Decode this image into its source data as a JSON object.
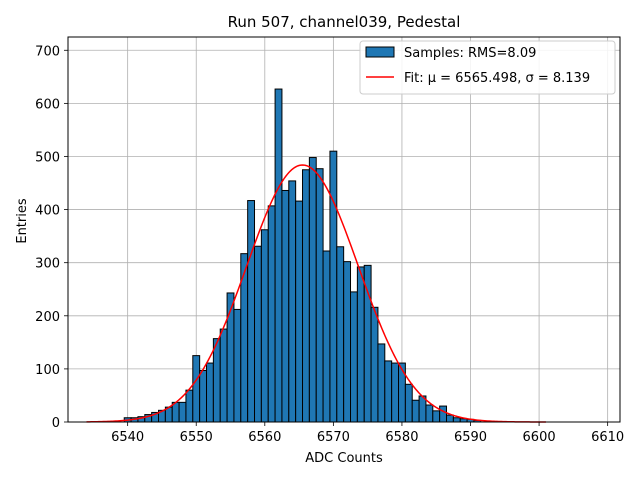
{
  "chart_data": {
    "type": "bar",
    "title": "Run 507, channel039, Pedestal",
    "xlabel": "ADC Counts",
    "ylabel": "Entries",
    "xlim": [
      6531.3,
      6611.8
    ],
    "ylim": [
      0,
      725
    ],
    "xticks": [
      6540,
      6550,
      6560,
      6570,
      6580,
      6590,
      6600,
      6610
    ],
    "yticks": [
      0,
      100,
      200,
      300,
      400,
      500,
      600,
      700
    ],
    "grid": true,
    "legend_position": "top-right",
    "bin_width": 1,
    "bins": {
      "x": [
        6540,
        6541,
        6542,
        6543,
        6544,
        6545,
        6546,
        6547,
        6548,
        6549,
        6550,
        6551,
        6552,
        6553,
        6554,
        6555,
        6556,
        6557,
        6558,
        6559,
        6560,
        6561,
        6562,
        6563,
        6564,
        6565,
        6566,
        6567,
        6568,
        6569,
        6570,
        6571,
        6572,
        6573,
        6574,
        6575,
        6576,
        6577,
        6578,
        6579,
        6580,
        6581,
        6582,
        6583,
        6584,
        6585,
        6586,
        6587,
        6588,
        6589,
        6590,
        6591
      ],
      "counts": [
        8,
        8,
        10,
        14,
        18,
        22,
        28,
        37,
        37,
        60,
        125,
        97,
        111,
        157,
        175,
        243,
        212,
        317,
        417,
        331,
        362,
        407,
        627,
        436,
        454,
        416,
        475,
        498,
        477,
        322,
        510,
        330,
        302,
        245,
        292,
        295,
        216,
        147,
        115,
        111,
        111,
        71,
        41,
        49,
        32,
        21,
        30,
        13,
        8,
        6,
        5,
        3
      ]
    },
    "series": [
      {
        "name": "Samples: RMS=8.09",
        "kind": "histogram",
        "color": "#1f77b4",
        "edge_color": "#000000"
      },
      {
        "name": "Fit: μ = 6565.498, σ = 8.139",
        "kind": "line",
        "color": "#ff0000",
        "mu": 6565.498,
        "sigma": 8.139,
        "amplitude": 484,
        "x_range": [
          6534,
          6601
        ]
      }
    ]
  }
}
